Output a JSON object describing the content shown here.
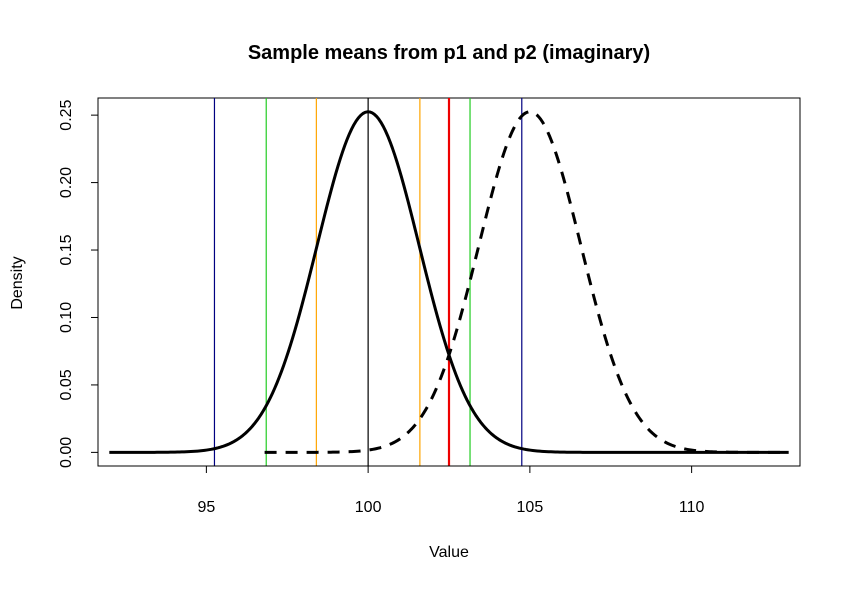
{
  "chart_data": {
    "type": "line",
    "title": "Sample means from p1 and p2 (imaginary)",
    "xlabel": "Value",
    "ylabel": "Density",
    "xlim": [
      91.65,
      113.35
    ],
    "ylim": [
      -0.0101,
      0.2627
    ],
    "x_ticks": [
      95,
      100,
      105,
      110
    ],
    "y_ticks": [
      0.0,
      0.05,
      0.1,
      0.15,
      0.2,
      0.25
    ],
    "x_tick_labels": [
      "95",
      "100",
      "105",
      "110"
    ],
    "y_tick_labels": [
      "0.00",
      "0.05",
      "0.10",
      "0.15",
      "0.20",
      "0.25"
    ],
    "grid": false,
    "legend": "none",
    "series": [
      {
        "style": "solid",
        "color": "#000000",
        "mean": 100,
        "sd": 1.58,
        "x_range": [
          92,
          113
        ]
      },
      {
        "style": "dashed",
        "color": "#000000",
        "mean": 105,
        "sd": 1.58,
        "x_range": [
          96.8,
          113
        ]
      }
    ],
    "vertical_lines": [
      {
        "x": 95.25,
        "color": "#000080"
      },
      {
        "x": 96.85,
        "color": "#22cc22"
      },
      {
        "x": 98.4,
        "color": "#ffa500"
      },
      {
        "x": 100.0,
        "color": "#000000"
      },
      {
        "x": 101.6,
        "color": "#ffa500"
      },
      {
        "x": 102.5,
        "color": "#ee0000"
      },
      {
        "x": 103.15,
        "color": "#22cc22"
      },
      {
        "x": 104.75,
        "color": "#000080"
      }
    ]
  }
}
